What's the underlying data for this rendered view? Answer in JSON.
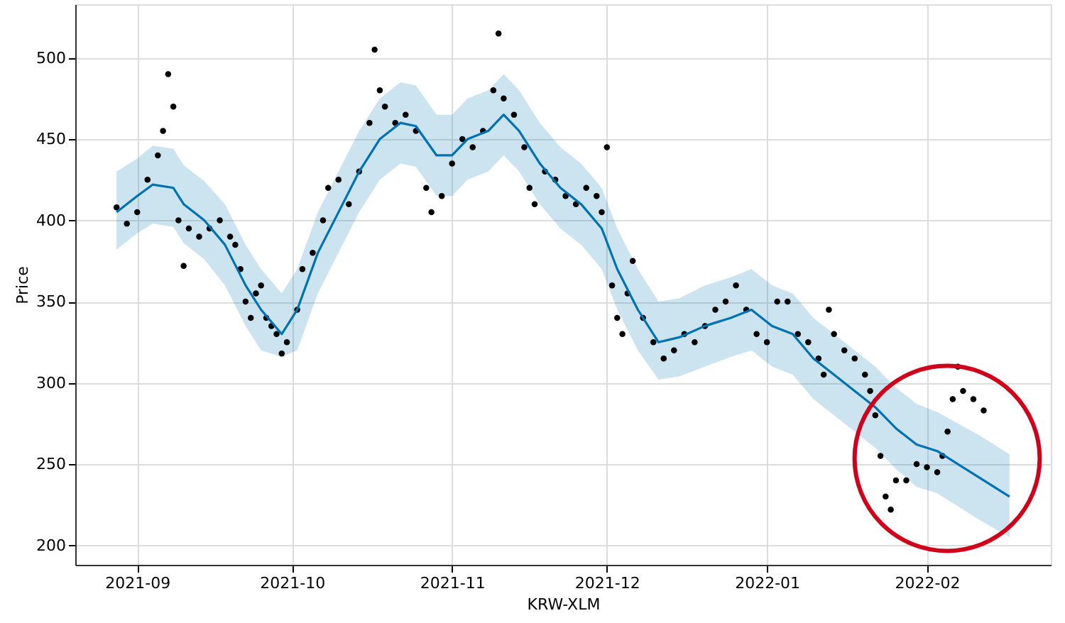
{
  "chart_data": {
    "type": "scatter",
    "xlabel": "KRW-XLM",
    "ylabel": "Price",
    "xlim": [
      "2021-08-20",
      "2022-02-25"
    ],
    "ylim": [
      188,
      533
    ],
    "xticks": [
      {
        "value": "2021-09-01",
        "label": "2021-09"
      },
      {
        "value": "2021-10-01",
        "label": "2021-10"
      },
      {
        "value": "2021-11-01",
        "label": "2021-11"
      },
      {
        "value": "2021-12-01",
        "label": "2021-12"
      },
      {
        "value": "2022-01-01",
        "label": "2022-01"
      },
      {
        "value": "2022-02-01",
        "label": "2022-02"
      }
    ],
    "yticks": [
      200,
      250,
      300,
      350,
      400,
      450,
      500
    ],
    "grid": true,
    "line_style": "solid",
    "series": [
      {
        "color": "#000000",
        "marker": "circle",
        "x": [
          "2021-08-28",
          "2021-08-30",
          "2021-09-01",
          "2021-09-03",
          "2021-09-05",
          "2021-09-06",
          "2021-09-07",
          "2021-09-08",
          "2021-09-09",
          "2021-09-10",
          "2021-09-11",
          "2021-09-13",
          "2021-09-15",
          "2021-09-17",
          "2021-09-19",
          "2021-09-20",
          "2021-09-21",
          "2021-09-22",
          "2021-09-23",
          "2021-09-24",
          "2021-09-25",
          "2021-09-26",
          "2021-09-27",
          "2021-09-28",
          "2021-09-29",
          "2021-09-30",
          "2021-10-02",
          "2021-10-03",
          "2021-10-05",
          "2021-10-07",
          "2021-10-08",
          "2021-10-10",
          "2021-10-12",
          "2021-10-14",
          "2021-10-16",
          "2021-10-17",
          "2021-10-18",
          "2021-10-19",
          "2021-10-21",
          "2021-10-23",
          "2021-10-25",
          "2021-10-27",
          "2021-10-28",
          "2021-10-30",
          "2021-11-01",
          "2021-11-03",
          "2021-11-05",
          "2021-11-07",
          "2021-11-09",
          "2021-11-10",
          "2021-11-11",
          "2021-11-13",
          "2021-11-15",
          "2021-11-16",
          "2021-11-17",
          "2021-11-19",
          "2021-11-21",
          "2021-11-23",
          "2021-11-25",
          "2021-11-27",
          "2021-11-29",
          "2021-11-30",
          "2021-12-01",
          "2021-12-02",
          "2021-12-03",
          "2021-12-04",
          "2021-12-05",
          "2021-12-06",
          "2021-12-08",
          "2021-12-10",
          "2021-12-12",
          "2021-12-14",
          "2021-12-16",
          "2021-12-18",
          "2021-12-20",
          "2021-12-22",
          "2021-12-24",
          "2021-12-26",
          "2021-12-28",
          "2021-12-30",
          "2022-01-01",
          "2022-01-03",
          "2022-01-05",
          "2022-01-07",
          "2022-01-09",
          "2022-01-11",
          "2022-01-12",
          "2022-01-13",
          "2022-01-14",
          "2022-01-16",
          "2022-01-18",
          "2022-01-20",
          "2022-01-21",
          "2022-01-22",
          "2022-01-23",
          "2022-01-24",
          "2022-01-25",
          "2022-01-26",
          "2022-01-28",
          "2022-01-30",
          "2022-02-01",
          "2022-02-03",
          "2022-02-04",
          "2022-02-05",
          "2022-02-06",
          "2022-02-07",
          "2022-02-08",
          "2022-02-10",
          "2022-02-12"
        ],
        "values": [
          408,
          398,
          405,
          425,
          440,
          455,
          490,
          470,
          400,
          372,
          395,
          390,
          395,
          400,
          390,
          385,
          370,
          350,
          340,
          355,
          360,
          340,
          335,
          330,
          318,
          325,
          345,
          370,
          380,
          400,
          420,
          425,
          410,
          430,
          460,
          505,
          480,
          470,
          460,
          465,
          455,
          420,
          405,
          415,
          435,
          450,
          445,
          455,
          480,
          515,
          475,
          465,
          445,
          420,
          410,
          430,
          425,
          415,
          410,
          420,
          415,
          405,
          445,
          360,
          340,
          330,
          355,
          375,
          340,
          325,
          315,
          320,
          330,
          325,
          335,
          345,
          350,
          360,
          345,
          330,
          325,
          350,
          350,
          330,
          325,
          315,
          305,
          345,
          330,
          320,
          315,
          305,
          295,
          280,
          255,
          230,
          222,
          240,
          240,
          250,
          248,
          245,
          255,
          270,
          290,
          310,
          295,
          290,
          283
        ]
      },
      {
        "type": "line",
        "color": "#0072b2",
        "marker": "none",
        "x": [
          "2021-08-28",
          "2021-09-01",
          "2021-09-04",
          "2021-09-08",
          "2021-09-10",
          "2021-09-14",
          "2021-09-18",
          "2021-09-22",
          "2021-09-25",
          "2021-09-29",
          "2021-10-02",
          "2021-10-06",
          "2021-10-10",
          "2021-10-14",
          "2021-10-18",
          "2021-10-22",
          "2021-10-25",
          "2021-10-29",
          "2021-11-01",
          "2021-11-04",
          "2021-11-08",
          "2021-11-11",
          "2021-11-14",
          "2021-11-18",
          "2021-11-22",
          "2021-11-26",
          "2021-11-30",
          "2021-12-03",
          "2021-12-07",
          "2021-12-11",
          "2021-12-15",
          "2021-12-20",
          "2021-12-25",
          "2021-12-29",
          "2022-01-02",
          "2022-01-06",
          "2022-01-10",
          "2022-01-14",
          "2022-01-18",
          "2022-01-22",
          "2022-01-26",
          "2022-01-30",
          "2022-02-03",
          "2022-02-07",
          "2022-02-11",
          "2022-02-17"
        ],
        "values": [
          405,
          415,
          422,
          420,
          410,
          400,
          385,
          360,
          345,
          330,
          345,
          380,
          405,
          430,
          450,
          460,
          458,
          440,
          440,
          450,
          455,
          465,
          455,
          435,
          420,
          410,
          395,
          370,
          345,
          325,
          328,
          335,
          340,
          345,
          335,
          330,
          315,
          305,
          295,
          285,
          272,
          262,
          258,
          250,
          242,
          230
        ],
        "lower": [
          382,
          392,
          398,
          396,
          386,
          376,
          360,
          335,
          320,
          316,
          320,
          355,
          380,
          405,
          425,
          435,
          433,
          415,
          415,
          425,
          430,
          440,
          430,
          410,
          395,
          385,
          370,
          345,
          320,
          302,
          304,
          310,
          316,
          320,
          310,
          305,
          290,
          280,
          270,
          260,
          247,
          236,
          232,
          224,
          216,
          205
        ],
        "upper": [
          430,
          438,
          446,
          444,
          434,
          424,
          410,
          385,
          370,
          355,
          370,
          405,
          430,
          455,
          475,
          485,
          483,
          465,
          465,
          475,
          480,
          490,
          480,
          460,
          445,
          435,
          420,
          395,
          370,
          350,
          352,
          360,
          365,
          370,
          360,
          355,
          340,
          330,
          320,
          310,
          297,
          287,
          282,
          275,
          268,
          256
        ]
      }
    ]
  }
}
